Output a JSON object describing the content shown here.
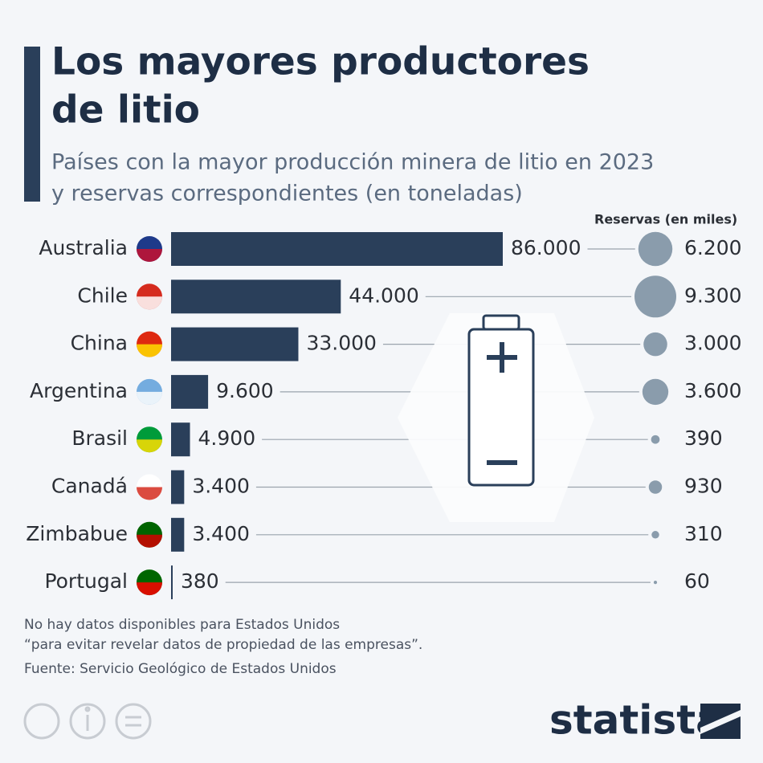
{
  "chart_data": {
    "type": "bar",
    "title": [
      "Los mayores productores",
      "de litio"
    ],
    "subtitle": [
      "Países con la mayor producción minera de litio en 2023",
      "y reservas correspondientes (en toneladas)"
    ],
    "categories": [
      "Australia",
      "Chile",
      "China",
      "Argentina",
      "Brasil",
      "Canadá",
      "Zimbabue",
      "Portugal"
    ],
    "series": [
      {
        "name": "Producción",
        "color": "#2a3f5a",
        "values": [
          86000,
          44000,
          33000,
          9600,
          4900,
          3400,
          3400,
          380
        ],
        "value_labels": [
          "86.000",
          "44.000",
          "33.000",
          "9.600",
          "4.900",
          "3.400",
          "3.400",
          "380"
        ]
      },
      {
        "name": "Reservas (en miles)",
        "color": "#8a9cac",
        "values": [
          6200,
          9300,
          3000,
          3600,
          390,
          930,
          310,
          60
        ],
        "value_labels": [
          "6.200",
          "9.300",
          "3.000",
          "3.600",
          "390",
          "930",
          "310",
          "60"
        ]
      }
    ],
    "notes": [
      "No hay datos disponibles para Estados Unidos",
      "“para evitar revelar datos de propiedad de las empresas”."
    ],
    "source": "Fuente: Servicio Geológico de Estados Unidos",
    "brand": "statista"
  }
}
